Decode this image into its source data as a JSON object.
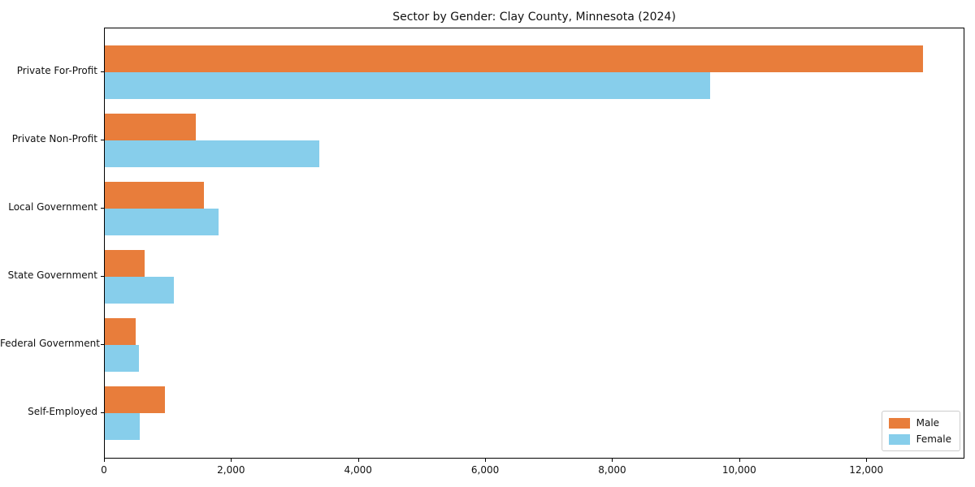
{
  "chart_data": {
    "type": "bar",
    "orientation": "horizontal",
    "title": "Sector by Gender: Clay County, Minnesota (2024)",
    "xlabel": "",
    "ylabel": "",
    "categories": [
      "Private For-Profit",
      "Private Non-Profit",
      "Local Government",
      "State Government",
      "Federal Government",
      "Self-Employed"
    ],
    "series": [
      {
        "name": "Male",
        "color": "#E87D3B",
        "values": [
          12900,
          1430,
          1560,
          630,
          490,
          950
        ]
      },
      {
        "name": "Female",
        "color": "#87CEEB",
        "values": [
          9550,
          3380,
          1800,
          1090,
          540,
          550
        ]
      }
    ],
    "xlim": [
      0,
      13545
    ],
    "xticks": [
      {
        "value": 0,
        "label": "0"
      },
      {
        "value": 2000,
        "label": "2,000"
      },
      {
        "value": 4000,
        "label": "4,000"
      },
      {
        "value": 6000,
        "label": "6,000"
      },
      {
        "value": 8000,
        "label": "8,000"
      },
      {
        "value": 10000,
        "label": "10,000"
      },
      {
        "value": 12000,
        "label": "12,000"
      }
    ],
    "grid": false,
    "legend_position": "lower right",
    "legend_entries": [
      "Male",
      "Female"
    ]
  }
}
